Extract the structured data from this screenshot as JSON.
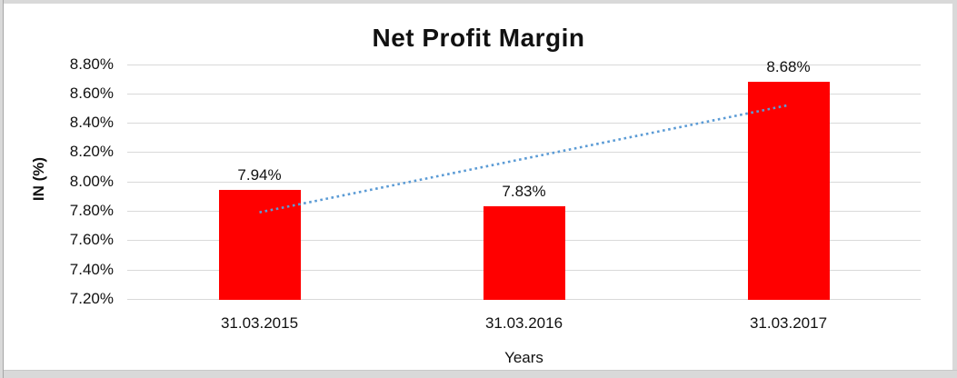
{
  "chart_data": {
    "type": "bar",
    "title": "Net Profit Margin",
    "xlabel": "Years",
    "ylabel": "IN (%)",
    "categories": [
      "31.03.2015",
      "31.03.2016",
      "31.03.2017"
    ],
    "values": [
      7.94,
      7.83,
      8.68
    ],
    "data_labels": [
      "7.94%",
      "7.83%",
      "8.68%"
    ],
    "ylim": [
      7.2,
      8.8
    ],
    "yticks": [
      {
        "value": 8.8,
        "label": "8.80%"
      },
      {
        "value": 8.6,
        "label": "8.60%"
      },
      {
        "value": 8.4,
        "label": "8.40%"
      },
      {
        "value": 8.2,
        "label": "8.20%"
      },
      {
        "value": 8.0,
        "label": "8.00%"
      },
      {
        "value": 7.8,
        "label": "7.80%"
      },
      {
        "value": 7.6,
        "label": "7.60%"
      },
      {
        "value": 7.4,
        "label": "7.40%"
      },
      {
        "value": 7.2,
        "label": "7.20%"
      }
    ],
    "grid": true,
    "legend": "none",
    "bar_color": "#FF0000",
    "trendline": {
      "type": "linear",
      "style": "dotted",
      "color": "#5B9BD5",
      "start_value": 7.79,
      "end_value": 8.52
    }
  }
}
